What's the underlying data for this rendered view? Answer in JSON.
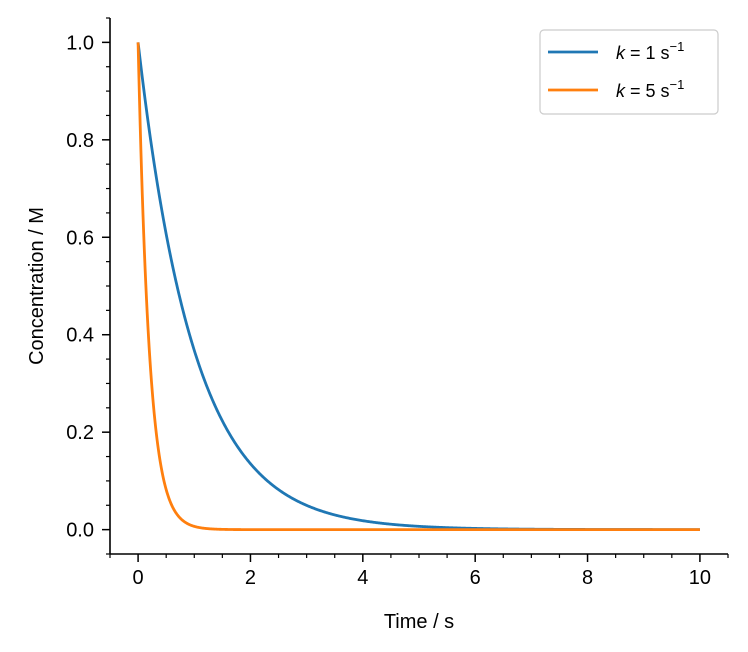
{
  "chart_data": {
    "type": "line",
    "title": "",
    "xlabel": "Time / s",
    "ylabel": "Concentration / M",
    "xlim": [
      -0.5,
      10.5
    ],
    "ylim": [
      -0.05,
      1.05
    ],
    "xticks": [
      0,
      2,
      4,
      6,
      8,
      10
    ],
    "xtick_labels": [
      "0",
      "2",
      "4",
      "6",
      "8",
      "10"
    ],
    "yticks": [
      0.0,
      0.2,
      0.4,
      0.6,
      0.8,
      1.0
    ],
    "ytick_labels": [
      "0.0",
      "0.2",
      "0.4",
      "0.6",
      "0.8",
      "1.0"
    ],
    "x_minor_step": 0.5,
    "y_minor_step": 0.05,
    "grid": false,
    "legend_position": "top-right",
    "x_range": [
      0,
      10
    ],
    "series": [
      {
        "label_italic": "k",
        "label_rest": " = 1 s",
        "label_sup": "−1",
        "k": 1,
        "initial_concentration": 1.0,
        "color": "#1f77b4"
      },
      {
        "label_italic": "k",
        "label_rest": " = 5 s",
        "label_sup": "−1",
        "k": 5,
        "initial_concentration": 1.0,
        "color": "#ff7f0e"
      }
    ]
  }
}
